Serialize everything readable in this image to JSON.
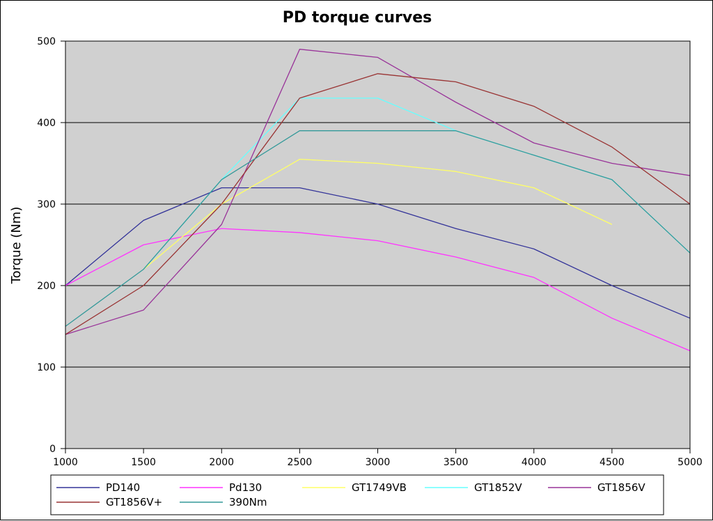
{
  "chart_data": {
    "type": "line",
    "title": "PD torque curves",
    "xlabel": "",
    "ylabel": "Torque (Nm)",
    "x": [
      1000,
      1500,
      2000,
      2500,
      3000,
      3500,
      4000,
      4500,
      5000
    ],
    "xlim": [
      1000,
      5000
    ],
    "ylim": [
      0,
      500
    ],
    "xticks": [
      1000,
      1500,
      2000,
      2500,
      3000,
      3500,
      4000,
      4500,
      5000
    ],
    "yticks": [
      0,
      100,
      200,
      300,
      400,
      500
    ],
    "grid": "horizontal",
    "plot_background": "#d0d0d0",
    "legend_position": "bottom",
    "series": [
      {
        "name": "PD140",
        "color": "#333399",
        "values": [
          200,
          280,
          320,
          320,
          300,
          270,
          245,
          200,
          160
        ]
      },
      {
        "name": "Pd130",
        "color": "#ff33ff",
        "values": [
          200,
          250,
          270,
          265,
          255,
          235,
          210,
          160,
          120
        ]
      },
      {
        "name": "GT1749VB",
        "color": "#ffff66",
        "values": [
          null,
          220,
          300,
          355,
          350,
          340,
          320,
          275,
          null
        ]
      },
      {
        "name": "GT1852V",
        "color": "#66ffff",
        "values": [
          null,
          220,
          330,
          430,
          430,
          390,
          360,
          330,
          240
        ]
      },
      {
        "name": "GT1856V",
        "color": "#993399",
        "values": [
          140,
          170,
          275,
          490,
          480,
          425,
          375,
          350,
          335
        ]
      },
      {
        "name": "GT1856V+",
        "color": "#993333",
        "values": [
          140,
          200,
          300,
          430,
          460,
          450,
          420,
          370,
          300
        ]
      },
      {
        "name": "390Nm",
        "color": "#339999",
        "values": [
          150,
          220,
          330,
          390,
          390,
          390,
          360,
          330,
          240
        ]
      }
    ]
  }
}
